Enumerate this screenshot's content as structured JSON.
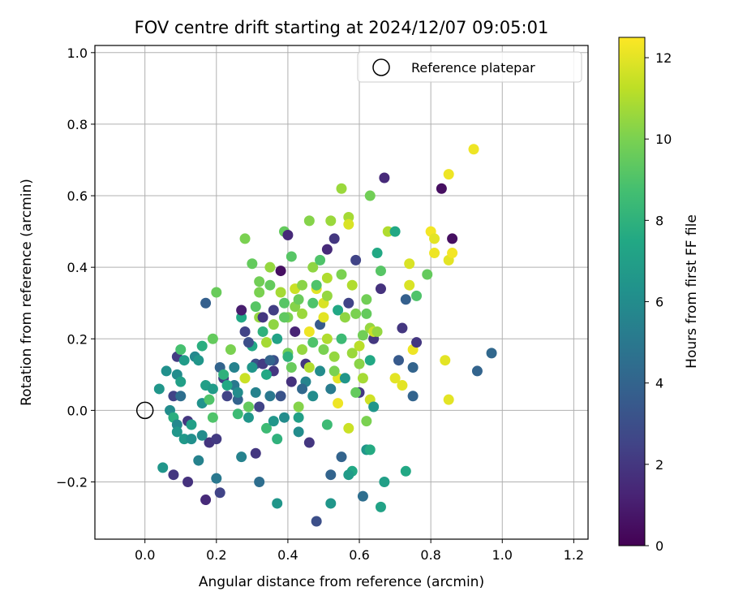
{
  "chart_data": {
    "type": "scatter",
    "title": "FOV centre drift starting at 2024/12/07 09:05:01",
    "xlabel": "Angular distance from reference (arcmin)",
    "ylabel": "Rotation from reference (arcmin)",
    "xlim": [
      -0.14,
      1.24
    ],
    "ylim": [
      -0.36,
      1.02
    ],
    "xticks": [
      "0.0",
      "0.2",
      "0.4",
      "0.6",
      "0.8",
      "1.0",
      "1.2"
    ],
    "yticks": [
      "−0.2",
      "0.0",
      "0.2",
      "0.4",
      "0.6",
      "0.8",
      "1.0"
    ],
    "grid": true,
    "legend": {
      "placement": "top-right",
      "entries": [
        "Reference platepar"
      ]
    },
    "reference_point": {
      "x": 0.0,
      "y": 0.0
    },
    "colorbar": {
      "label": "Hours from first FF file",
      "range": [
        0,
        12.5
      ],
      "ticks": [
        "0",
        "2",
        "4",
        "6",
        "8",
        "10",
        "12"
      ],
      "colormap": "viridis"
    },
    "points": [
      {
        "x": 0.04,
        "y": 0.06,
        "h": 6.5
      },
      {
        "x": 0.06,
        "y": 0.11,
        "h": 6.2
      },
      {
        "x": 0.08,
        "y": 0.04,
        "h": 2.5
      },
      {
        "x": 0.08,
        "y": -0.18,
        "h": 2.0
      },
      {
        "x": 0.09,
        "y": 0.1,
        "h": 6.0
      },
      {
        "x": 0.09,
        "y": 0.15,
        "h": 2.2
      },
      {
        "x": 0.1,
        "y": 0.17,
        "h": 8.8
      },
      {
        "x": 0.1,
        "y": 0.08,
        "h": 7.0
      },
      {
        "x": 0.1,
        "y": 0.04,
        "h": 4.5
      },
      {
        "x": 0.11,
        "y": 0.14,
        "h": 6.8
      },
      {
        "x": 0.12,
        "y": -0.03,
        "h": 2.0
      },
      {
        "x": 0.12,
        "y": -0.2,
        "h": 1.8
      },
      {
        "x": 0.14,
        "y": 0.15,
        "h": 5.8
      },
      {
        "x": 0.15,
        "y": 0.14,
        "h": 6.5
      },
      {
        "x": 0.15,
        "y": -0.14,
        "h": 5.5
      },
      {
        "x": 0.16,
        "y": 0.18,
        "h": 7.8
      },
      {
        "x": 0.17,
        "y": 0.3,
        "h": 3.8
      },
      {
        "x": 0.17,
        "y": -0.25,
        "h": 1.5
      },
      {
        "x": 0.18,
        "y": -0.09,
        "h": 1.9
      },
      {
        "x": 0.19,
        "y": 0.2,
        "h": 9.5
      },
      {
        "x": 0.19,
        "y": -0.02,
        "h": 9.0
      },
      {
        "x": 0.2,
        "y": 0.33,
        "h": 9.6
      },
      {
        "x": 0.21,
        "y": 0.12,
        "h": 4.0
      },
      {
        "x": 0.22,
        "y": 0.09,
        "h": 2.3
      },
      {
        "x": 0.21,
        "y": -0.23,
        "h": 2.5
      },
      {
        "x": 0.2,
        "y": -0.19,
        "h": 5.0
      },
      {
        "x": 0.2,
        "y": -0.08,
        "h": 2.1
      },
      {
        "x": 0.23,
        "y": 0.04,
        "h": 2.5
      },
      {
        "x": 0.24,
        "y": 0.17,
        "h": 10.0
      },
      {
        "x": 0.25,
        "y": 0.07,
        "h": 5.0
      },
      {
        "x": 0.26,
        "y": 0.03,
        "h": 4.0
      },
      {
        "x": 0.27,
        "y": 0.26,
        "h": 7.5
      },
      {
        "x": 0.27,
        "y": 0.28,
        "h": 1.0
      },
      {
        "x": 0.28,
        "y": 0.22,
        "h": 2.5
      },
      {
        "x": 0.28,
        "y": 0.48,
        "h": 10.0
      },
      {
        "x": 0.28,
        "y": 0.09,
        "h": 11.5
      },
      {
        "x": 0.29,
        "y": -0.02,
        "h": 6.5
      },
      {
        "x": 0.3,
        "y": 0.41,
        "h": 9.5
      },
      {
        "x": 0.3,
        "y": 0.18,
        "h": 7.5
      },
      {
        "x": 0.31,
        "y": 0.13,
        "h": 3.0
      },
      {
        "x": 0.31,
        "y": 0.05,
        "h": 5.5
      },
      {
        "x": 0.31,
        "y": -0.12,
        "h": 2.0
      },
      {
        "x": 0.32,
        "y": 0.36,
        "h": 9.8
      },
      {
        "x": 0.32,
        "y": 0.26,
        "h": 10.5
      },
      {
        "x": 0.32,
        "y": 0.01,
        "h": 2.5
      },
      {
        "x": 0.32,
        "y": -0.2,
        "h": 4.5
      },
      {
        "x": 0.33,
        "y": 0.26,
        "h": 2.0
      },
      {
        "x": 0.33,
        "y": 0.13,
        "h": 2.2
      },
      {
        "x": 0.34,
        "y": 0.19,
        "h": 10.8
      },
      {
        "x": 0.34,
        "y": -0.05,
        "h": 8.5
      },
      {
        "x": 0.35,
        "y": 0.4,
        "h": 10.5
      },
      {
        "x": 0.36,
        "y": 0.28,
        "h": 2.3
      },
      {
        "x": 0.36,
        "y": 0.14,
        "h": 3.0
      },
      {
        "x": 0.36,
        "y": 0.11,
        "h": 2.0
      },
      {
        "x": 0.37,
        "y": -0.26,
        "h": 6.5
      },
      {
        "x": 0.37,
        "y": -0.08,
        "h": 8.0
      },
      {
        "x": 0.38,
        "y": 0.39,
        "h": 0.5
      },
      {
        "x": 0.38,
        "y": 0.04,
        "h": 3.2
      },
      {
        "x": 0.39,
        "y": 0.5,
        "h": 9.5
      },
      {
        "x": 0.39,
        "y": 0.3,
        "h": 9.2
      },
      {
        "x": 0.4,
        "y": 0.49,
        "h": 1.5
      },
      {
        "x": 0.4,
        "y": 0.26,
        "h": 10.0
      },
      {
        "x": 0.4,
        "y": 0.16,
        "h": 9.8
      },
      {
        "x": 0.41,
        "y": 0.43,
        "h": 9.2
      },
      {
        "x": 0.41,
        "y": 0.08,
        "h": 1.8
      },
      {
        "x": 0.42,
        "y": 0.34,
        "h": 11.5
      },
      {
        "x": 0.42,
        "y": 0.22,
        "h": 1.2
      },
      {
        "x": 0.43,
        "y": 0.01,
        "h": 10.2
      },
      {
        "x": 0.43,
        "y": -0.06,
        "h": 6.0
      },
      {
        "x": 0.44,
        "y": 0.35,
        "h": 10.3
      },
      {
        "x": 0.44,
        "y": 0.17,
        "h": 10.5
      },
      {
        "x": 0.45,
        "y": 0.13,
        "h": 2.0
      },
      {
        "x": 0.46,
        "y": 0.53,
        "h": 10.2
      },
      {
        "x": 0.46,
        "y": 0.22,
        "h": 12.2
      },
      {
        "x": 0.46,
        "y": -0.09,
        "h": 2.0
      },
      {
        "x": 0.47,
        "y": 0.4,
        "h": 10.4
      },
      {
        "x": 0.47,
        "y": 0.04,
        "h": 6.0
      },
      {
        "x": 0.48,
        "y": -0.31,
        "h": 3.0
      },
      {
        "x": 0.48,
        "y": 0.34,
        "h": 12.0
      },
      {
        "x": 0.49,
        "y": 0.42,
        "h": 9.0
      },
      {
        "x": 0.49,
        "y": 0.24,
        "h": 3.5
      },
      {
        "x": 0.5,
        "y": 0.3,
        "h": 11.8
      },
      {
        "x": 0.5,
        "y": 0.17,
        "h": 10.0
      },
      {
        "x": 0.51,
        "y": 0.45,
        "h": 1.5
      },
      {
        "x": 0.51,
        "y": 0.37,
        "h": 11.0
      },
      {
        "x": 0.51,
        "y": 0.2,
        "h": 11.0
      },
      {
        "x": 0.52,
        "y": 0.53,
        "h": 10.6
      },
      {
        "x": 0.52,
        "y": -0.26,
        "h": 6.5
      },
      {
        "x": 0.52,
        "y": -0.18,
        "h": 4.0
      },
      {
        "x": 0.53,
        "y": 0.48,
        "h": 2.0
      },
      {
        "x": 0.53,
        "y": 0.15,
        "h": 10.5
      },
      {
        "x": 0.54,
        "y": 0.28,
        "h": 7.5
      },
      {
        "x": 0.54,
        "y": 0.09,
        "h": 12.0
      },
      {
        "x": 0.55,
        "y": 0.62,
        "h": 10.6
      },
      {
        "x": 0.55,
        "y": 0.38,
        "h": 10.0
      },
      {
        "x": 0.55,
        "y": -0.13,
        "h": 4.0
      },
      {
        "x": 0.56,
        "y": 0.26,
        "h": 10.4
      },
      {
        "x": 0.57,
        "y": 0.54,
        "h": 10.8
      },
      {
        "x": 0.57,
        "y": 0.52,
        "h": 11.8
      },
      {
        "x": 0.57,
        "y": 0.3,
        "h": 2.5
      },
      {
        "x": 0.57,
        "y": -0.05,
        "h": 11.5
      },
      {
        "x": 0.58,
        "y": 0.16,
        "h": 10.6
      },
      {
        "x": 0.58,
        "y": -0.17,
        "h": 7.5
      },
      {
        "x": 0.59,
        "y": 0.42,
        "h": 2.5
      },
      {
        "x": 0.59,
        "y": 0.27,
        "h": 10.0
      },
      {
        "x": 0.6,
        "y": 0.05,
        "h": 2.0
      },
      {
        "x": 0.6,
        "y": 0.13,
        "h": 10.3
      },
      {
        "x": 0.61,
        "y": 0.21,
        "h": 9.8
      },
      {
        "x": 0.61,
        "y": -0.24,
        "h": 4.5
      },
      {
        "x": 0.62,
        "y": 0.31,
        "h": 9.8
      },
      {
        "x": 0.62,
        "y": -0.11,
        "h": 6.5
      },
      {
        "x": 0.63,
        "y": 0.6,
        "h": 9.8
      },
      {
        "x": 0.63,
        "y": 0.23,
        "h": 10.5
      },
      {
        "x": 0.63,
        "y": 0.03,
        "h": 11.6
      },
      {
        "x": 0.64,
        "y": 0.01,
        "h": 6.5
      },
      {
        "x": 0.64,
        "y": 0.2,
        "h": 2.0
      },
      {
        "x": 0.65,
        "y": 0.44,
        "h": 7.5
      },
      {
        "x": 0.66,
        "y": 0.34,
        "h": 1.8
      },
      {
        "x": 0.66,
        "y": -0.27,
        "h": 7.2
      },
      {
        "x": 0.67,
        "y": 0.65,
        "h": 1.5
      },
      {
        "x": 0.67,
        "y": -0.2,
        "h": 7.0
      },
      {
        "x": 0.68,
        "y": 0.5,
        "h": 11.0
      },
      {
        "x": 0.7,
        "y": 0.5,
        "h": 7.5
      },
      {
        "x": 0.7,
        "y": 0.09,
        "h": 12.0
      },
      {
        "x": 0.71,
        "y": 0.14,
        "h": 3.5
      },
      {
        "x": 0.72,
        "y": 0.23,
        "h": 2.0
      },
      {
        "x": 0.72,
        "y": 0.07,
        "h": 12.0
      },
      {
        "x": 0.73,
        "y": -0.17,
        "h": 7.5
      },
      {
        "x": 0.73,
        "y": 0.31,
        "h": 3.8
      },
      {
        "x": 0.74,
        "y": 0.41,
        "h": 11.8
      },
      {
        "x": 0.74,
        "y": 0.35,
        "h": 11.8
      },
      {
        "x": 0.75,
        "y": 0.17,
        "h": 12.2
      },
      {
        "x": 0.75,
        "y": 0.12,
        "h": 4.0
      },
      {
        "x": 0.75,
        "y": 0.04,
        "h": 4.0
      },
      {
        "x": 0.76,
        "y": 0.32,
        "h": 9.0
      },
      {
        "x": 0.76,
        "y": 0.19,
        "h": 2.0
      },
      {
        "x": 0.79,
        "y": 0.38,
        "h": 9.5
      },
      {
        "x": 0.8,
        "y": 0.5,
        "h": 12.3
      },
      {
        "x": 0.81,
        "y": 0.48,
        "h": 12.0
      },
      {
        "x": 0.81,
        "y": 0.44,
        "h": 12.2
      },
      {
        "x": 0.83,
        "y": 0.62,
        "h": 0.5
      },
      {
        "x": 0.84,
        "y": 0.14,
        "h": 12.0
      },
      {
        "x": 0.85,
        "y": 0.66,
        "h": 12.2
      },
      {
        "x": 0.85,
        "y": 0.42,
        "h": 12.0
      },
      {
        "x": 0.85,
        "y": 0.03,
        "h": 12.0
      },
      {
        "x": 0.86,
        "y": 0.48,
        "h": 0.5
      },
      {
        "x": 0.86,
        "y": 0.44,
        "h": 12.3
      },
      {
        "x": 0.92,
        "y": 0.73,
        "h": 12.2
      },
      {
        "x": 0.93,
        "y": 0.11,
        "h": 4.0
      },
      {
        "x": 0.97,
        "y": 0.16,
        "h": 4.2
      },
      {
        "x": 0.05,
        "y": -0.16,
        "h": 6.5
      },
      {
        "x": 0.07,
        "y": 0.0,
        "h": 6.0
      },
      {
        "x": 0.08,
        "y": -0.02,
        "h": 7.8
      },
      {
        "x": 0.09,
        "y": -0.04,
        "h": 5.8
      },
      {
        "x": 0.09,
        "y": -0.06,
        "h": 6.5
      },
      {
        "x": 0.11,
        "y": -0.08,
        "h": 6.7
      },
      {
        "x": 0.13,
        "y": -0.04,
        "h": 7.0
      },
      {
        "x": 0.13,
        "y": -0.08,
        "h": 6.2
      },
      {
        "x": 0.16,
        "y": -0.07,
        "h": 6.0
      },
      {
        "x": 0.16,
        "y": 0.02,
        "h": 6.3
      },
      {
        "x": 0.17,
        "y": 0.07,
        "h": 7.0
      },
      {
        "x": 0.18,
        "y": 0.03,
        "h": 9.0
      },
      {
        "x": 0.19,
        "y": 0.06,
        "h": 6.8
      },
      {
        "x": 0.22,
        "y": 0.1,
        "h": 8.0
      },
      {
        "x": 0.23,
        "y": 0.07,
        "h": 7.5
      },
      {
        "x": 0.25,
        "y": 0.12,
        "h": 5.5
      },
      {
        "x": 0.26,
        "y": 0.05,
        "h": 6.0
      },
      {
        "x": 0.27,
        "y": -0.13,
        "h": 5.5
      },
      {
        "x": 0.29,
        "y": 0.01,
        "h": 9.5
      },
      {
        "x": 0.3,
        "y": 0.12,
        "h": 6.5
      },
      {
        "x": 0.31,
        "y": 0.29,
        "h": 9.2
      },
      {
        "x": 0.32,
        "y": 0.33,
        "h": 10.0
      },
      {
        "x": 0.33,
        "y": 0.22,
        "h": 8.0
      },
      {
        "x": 0.34,
        "y": 0.1,
        "h": 7.5
      },
      {
        "x": 0.35,
        "y": 0.35,
        "h": 9.5
      },
      {
        "x": 0.35,
        "y": 0.04,
        "h": 5.0
      },
      {
        "x": 0.36,
        "y": 0.24,
        "h": 10.4
      },
      {
        "x": 0.37,
        "y": 0.2,
        "h": 7.2
      },
      {
        "x": 0.38,
        "y": 0.33,
        "h": 10.8
      },
      {
        "x": 0.39,
        "y": 0.26,
        "h": 9.4
      },
      {
        "x": 0.4,
        "y": 0.15,
        "h": 8.0
      },
      {
        "x": 0.41,
        "y": 0.12,
        "h": 9.6
      },
      {
        "x": 0.42,
        "y": 0.29,
        "h": 10.2
      },
      {
        "x": 0.43,
        "y": 0.31,
        "h": 9.6
      },
      {
        "x": 0.44,
        "y": 0.27,
        "h": 10.6
      },
      {
        "x": 0.45,
        "y": 0.08,
        "h": 5.6
      },
      {
        "x": 0.46,
        "y": 0.12,
        "h": 11.0
      },
      {
        "x": 0.47,
        "y": 0.19,
        "h": 9.0
      },
      {
        "x": 0.48,
        "y": 0.35,
        "h": 9.0
      },
      {
        "x": 0.49,
        "y": 0.11,
        "h": 6.0
      },
      {
        "x": 0.5,
        "y": 0.26,
        "h": 12.0
      },
      {
        "x": 0.51,
        "y": 0.32,
        "h": 10.5
      },
      {
        "x": 0.52,
        "y": 0.06,
        "h": 5.2
      },
      {
        "x": 0.53,
        "y": 0.11,
        "h": 10.0
      },
      {
        "x": 0.54,
        "y": 0.02,
        "h": 12.2
      },
      {
        "x": 0.55,
        "y": 0.2,
        "h": 8.5
      },
      {
        "x": 0.56,
        "y": 0.09,
        "h": 6.5
      },
      {
        "x": 0.58,
        "y": 0.35,
        "h": 11.0
      },
      {
        "x": 0.59,
        "y": 0.05,
        "h": 9.5
      },
      {
        "x": 0.6,
        "y": 0.18,
        "h": 11.2
      },
      {
        "x": 0.61,
        "y": 0.09,
        "h": 10.8
      },
      {
        "x": 0.62,
        "y": 0.27,
        "h": 9.5
      },
      {
        "x": 0.63,
        "y": 0.14,
        "h": 7.5
      },
      {
        "x": 0.64,
        "y": 0.22,
        "h": 11.5
      },
      {
        "x": 0.65,
        "y": 0.22,
        "h": 10.5
      },
      {
        "x": 0.66,
        "y": 0.39,
        "h": 9.2
      },
      {
        "x": 0.62,
        "y": -0.03,
        "h": 10.0
      },
      {
        "x": 0.51,
        "y": -0.04,
        "h": 8.5
      },
      {
        "x": 0.43,
        "y": -0.02,
        "h": 7.0
      },
      {
        "x": 0.39,
        "y": -0.02,
        "h": 6.0
      },
      {
        "x": 0.36,
        "y": -0.03,
        "h": 6.5
      },
      {
        "x": 0.35,
        "y": 0.14,
        "h": 4.0
      },
      {
        "x": 0.29,
        "y": 0.19,
        "h": 3.0
      },
      {
        "x": 0.26,
        "y": -0.01,
        "h": 8.5
      },
      {
        "x": 0.57,
        "y": -0.18,
        "h": 6.8
      },
      {
        "x": 0.63,
        "y": -0.11,
        "h": 7.6
      },
      {
        "x": 0.44,
        "y": 0.06,
        "h": 4.2
      },
      {
        "x": 0.47,
        "y": 0.3,
        "h": 9.0
      }
    ]
  }
}
